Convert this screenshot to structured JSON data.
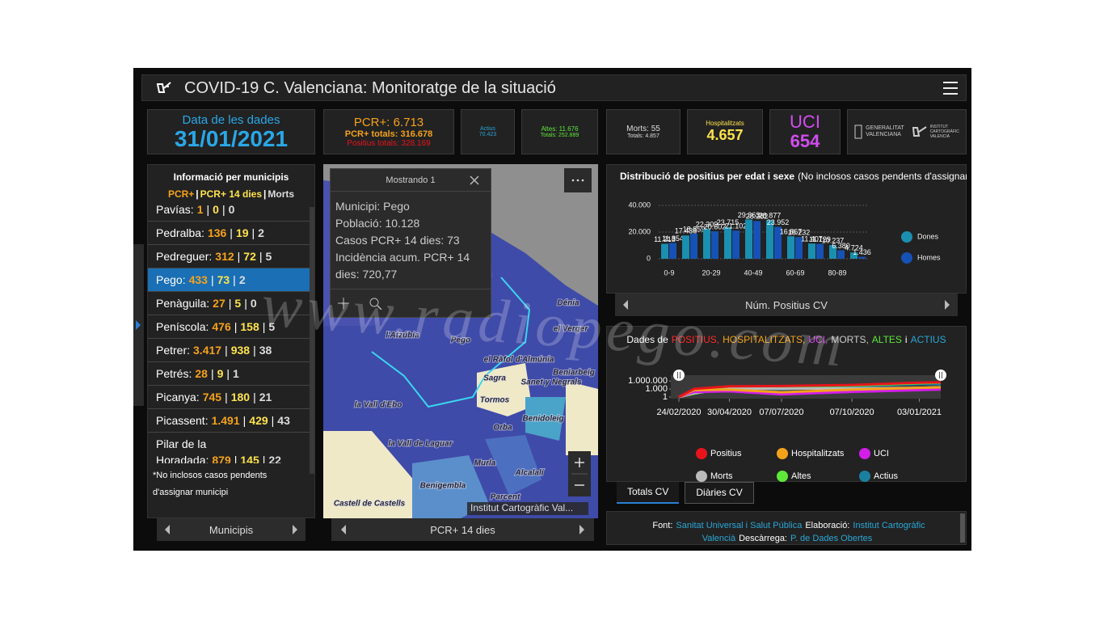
{
  "header": {
    "title": "COVID-19 C. Valenciana: Monitoratge de la situació"
  },
  "cards": {
    "date": {
      "label": "Data de les dades",
      "value": "31/01/2021"
    },
    "pcr": {
      "today": "PCR+: 6.713",
      "total": "PCR+ totals: 316.678",
      "positives": "Positius totals: 328.169"
    },
    "actius": {
      "label": "Actius",
      "value": "70.423"
    },
    "altes": {
      "today": "Altes: 11.676",
      "total": "Totals: 252.889"
    },
    "morts": {
      "today": "Morts: 55",
      "total": "Totals: 4.857"
    },
    "hosp": {
      "label": "Hospitalitzats",
      "value": "4.657"
    },
    "uci": {
      "label": "UCI",
      "value": "654"
    },
    "logos": {
      "gva": [
        "GENERALITAT",
        "VALENCIANA"
      ],
      "icv": [
        "INSTITUT",
        "CARTOGRÀFIC",
        "VALENCIÀ"
      ]
    }
  },
  "municipalities": {
    "title": "Informació per municipis",
    "legend": [
      "PCR+",
      "PCR+ 14 dies",
      "Morts"
    ],
    "separator": "|",
    "rows": [
      [
        "Pavías:",
        "1",
        "0",
        "0"
      ],
      [
        "Pedralba:",
        "136",
        "19",
        "2"
      ],
      [
        "Pedreguer:",
        "312",
        "72",
        "5"
      ],
      [
        "Pego:",
        "433",
        "73",
        "2"
      ],
      [
        "Penàguila:",
        "27",
        "5",
        "0"
      ],
      [
        "Peníscola:",
        "476",
        "158",
        "5"
      ],
      [
        "Petrer:",
        "3.417",
        "938",
        "38"
      ],
      [
        "Petrés:",
        "28",
        "9",
        "1"
      ],
      [
        "Picanya:",
        "745",
        "180",
        "21"
      ],
      [
        "Picassent:",
        "1.491",
        "429",
        "43"
      ],
      [
        "Pilar de la Horadada:",
        "879",
        "145",
        "22"
      ]
    ],
    "note": "*No inclosos casos pendents d'assignar municipi",
    "footer": "Municipis"
  },
  "map": {
    "popup": {
      "title": "Mostrando 1",
      "lines": [
        "Municipi: Pego",
        "Població: 10.128",
        "Casos PCR+ 14 dies: 73",
        "Incidència acum. PCR+ 14 dies: 720,77"
      ]
    },
    "labels": [
      "Dénia",
      "el Verger",
      "l'Atzúbia",
      "Pego",
      "el Ràfol d'Almúnia",
      "Sagra",
      "Sanet y Negrals",
      "Beniarbeig",
      "Tormos",
      "la Vall d'Ebo",
      "Benidoleig",
      "Orba",
      "la Vall de Laguar",
      "Murla",
      "Benigembla",
      "Alcalalí",
      "Parcent",
      "Castell de Castells"
    ],
    "attribution": "Institut Cartogràfic Val...",
    "footer": "PCR+ 14 dies"
  },
  "chart_data": [
    {
      "type": "bar",
      "title": "Distribució de positius per edat i sexe",
      "subtitle": "(No inclosos casos pendents d'assignar)",
      "categories": [
        "0-9",
        null,
        "20-29",
        null,
        "40-49",
        null,
        "60-69",
        null,
        "80-89",
        null
      ],
      "series": [
        {
          "name": "Dones",
          "color": "#1a8fb0",
          "values": [
            11213,
            17438,
            22309,
            23715,
            29363,
            28877,
            16867,
            11407,
            10237,
            4724
          ],
          "value_labels": [
            "11.213",
            "17.438",
            "22.309",
            "23.715",
            "29.363",
            "28.877",
            "16.867",
            "11.407",
            "10.237",
            "4.724"
          ]
        },
        {
          "name": "Homes",
          "color": "#1652b5",
          "values": [
            11854,
            18859,
            20602,
            21102,
            28282,
            23952,
            16232,
            11129,
            6380,
            1436
          ],
          "value_labels": [
            "11.854",
            "18.859",
            "20.602",
            "21.102",
            "28.282",
            "23.952",
            "16.232",
            "11.129",
            "6.380",
            "1.436"
          ]
        }
      ],
      "ylim": [
        0,
        40000
      ],
      "yticks": [
        0,
        {
          "value": 20000,
          "label": "20.000"
        },
        {
          "value": 40000,
          "label": "40.000"
        }
      ],
      "xlabel": "Núm. Positius CV",
      "legend": "right"
    },
    {
      "type": "line",
      "title": [
        {
          "text": "Dades de",
          "color": "#ffffff"
        },
        {
          "text": "POSITIUS,",
          "color": "#ff2a2a"
        },
        {
          "text": "HOSPITALITZATS,",
          "color": "#f5a21b"
        },
        {
          "text": "UCI,",
          "color": "#e040fb"
        },
        {
          "text": "MORTS,",
          "color": "#cccccc"
        },
        {
          "text": "ALTES",
          "color": "#5ee83a"
        },
        {
          "text": "i",
          "color": "#ffffff"
        },
        {
          "text": "ACTIUS",
          "color": "#2aa7d6"
        }
      ],
      "x": [
        "24/02/2020",
        "15/03/2020",
        "30/04/2020",
        "07/07/2020",
        "07/10/2020",
        "03/01/2021",
        "31/01/2021"
      ],
      "xlim": [
        "24/02/2020",
        "31/01/2021"
      ],
      "xticks": [
        "24/02/2020",
        "30/04/2020",
        "07/07/2020",
        "07/10/2020",
        "03/01/2021"
      ],
      "ylim": [
        1,
        10000000
      ],
      "yticks": [
        1,
        {
          "value": 1000,
          "label": "1.000"
        },
        {
          "value": 1000000,
          "label": "1.000.000"
        }
      ],
      "log_scale": true,
      "series": [
        {
          "name": "Positius",
          "color": "#e8141c",
          "values": [
            1,
            1200,
            11000,
            13500,
            34000,
            250000,
            328169
          ]
        },
        {
          "name": "Hospitalitzats",
          "color": "#f5a21b",
          "values": [
            1,
            400,
            600,
            60,
            600,
            3000,
            4657
          ]
        },
        {
          "name": "UCI",
          "color": "#d21ee8",
          "values": [
            1,
            80,
            150,
            10,
            90,
            400,
            654
          ]
        },
        {
          "name": "Morts",
          "color": "#bbbbbb",
          "values": [
            1,
            30,
            1300,
            1400,
            1700,
            2900,
            4857
          ]
        },
        {
          "name": "Altes",
          "color": "#5ee83a",
          "values": [
            1,
            20,
            6000,
            11000,
            20000,
            160000,
            252889
          ]
        },
        {
          "name": "Actius",
          "color": "#1b7fa0",
          "values": [
            1,
            1000,
            4000,
            800,
            12000,
            80000,
            70423
          ]
        }
      ]
    }
  ],
  "tabs": [
    "Totals CV",
    "Diàries CV"
  ],
  "source": {
    "parts": [
      {
        "text": "Font:",
        "link": false
      },
      {
        "text": "Sanitat Universal i Salut Pública",
        "link": true
      },
      {
        "text": "Elaboració:",
        "link": false
      },
      {
        "text": "Institut Cartogràfic Valencià",
        "link": true
      },
      {
        "text": "Descàrrega:",
        "link": false
      },
      {
        "text": "P. de Dades Obertes",
        "link": true
      }
    ]
  },
  "watermark": "www.radiopego.com"
}
